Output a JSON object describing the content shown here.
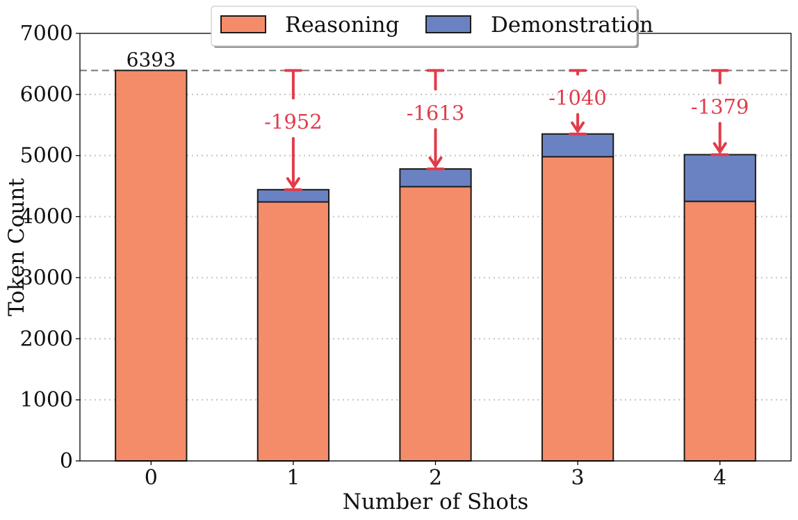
{
  "chart_data": {
    "type": "bar",
    "stacked": true,
    "categories": [
      "0",
      "1",
      "2",
      "3",
      "4"
    ],
    "series": [
      {
        "name": "Reasoning",
        "values": [
          6393,
          4240,
          4490,
          4980,
          4250
        ],
        "color": "#f58c69"
      },
      {
        "name": "Demonstration",
        "values": [
          0,
          201,
          290,
          373,
          764
        ],
        "color": "#6b82c2"
      }
    ],
    "totals": [
      6393,
      4441,
      4780,
      5353,
      5014
    ],
    "xlabel": "Number of Shots",
    "ylabel": "Token Count",
    "ylim": [
      0,
      7000
    ],
    "yticks": [
      0,
      1000,
      2000,
      3000,
      4000,
      5000,
      6000,
      7000
    ],
    "grid": true,
    "legend": {
      "placement": "top-center"
    },
    "reference_line": {
      "value": 6393
    },
    "data_labels": [
      {
        "category": "0",
        "text": "6393"
      }
    ],
    "annotations": [
      {
        "category": "1",
        "text": "-1952"
      },
      {
        "category": "2",
        "text": "-1613"
      },
      {
        "category": "3",
        "text": "-1040"
      },
      {
        "category": "4",
        "text": "-1379"
      }
    ],
    "annotation_color": "#e03c4a"
  }
}
